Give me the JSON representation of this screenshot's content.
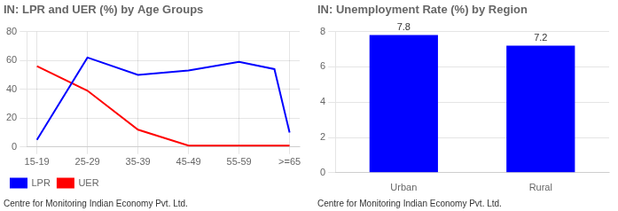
{
  "chart_data": [
    {
      "type": "line",
      "title": "IN: LPR and UER (%) by Age Groups",
      "series": [
        {
          "name": "LPR",
          "color": "#0000ff",
          "x": [
            0,
            1,
            2,
            3,
            4,
            4.7,
            5
          ],
          "values": [
            5,
            62,
            50,
            53,
            59,
            54,
            10
          ]
        },
        {
          "name": "UER",
          "color": "#ff0000",
          "x": [
            0,
            1,
            2,
            3,
            3.5,
            4,
            5
          ],
          "values": [
            56,
            39,
            12,
            1,
            1,
            1,
            1
          ]
        }
      ],
      "xlim": [
        -0.2,
        5.2
      ],
      "xticks": [
        {
          "value": 0,
          "label": "15-19"
        },
        {
          "value": 1,
          "label": "25-29"
        },
        {
          "value": 2,
          "label": "35-39"
        },
        {
          "value": 3,
          "label": "45-49"
        },
        {
          "value": 4,
          "label": "55-59"
        },
        {
          "value": 5,
          "label": ">=65"
        }
      ],
      "ylim": [
        0,
        80
      ],
      "yticks": [
        0,
        20,
        40,
        60,
        80
      ],
      "grid": true,
      "legend": "bottom",
      "annotations": [
        "Centre for Monitoring Indian Economy Pvt. Ltd."
      ]
    },
    {
      "type": "bar",
      "title": "IN: Unemployment Rate (%) by Region",
      "categories": [
        "Urban",
        "Rural"
      ],
      "values": [
        7.8,
        7.2
      ],
      "color": "#0000ff",
      "ylim": [
        0,
        8
      ],
      "yticks": [
        0,
        2,
        4,
        6,
        8
      ],
      "grid": "y",
      "data_labels": true,
      "annotations": [
        "Centre for Monitoring Indian Economy Pvt. Ltd."
      ]
    }
  ]
}
